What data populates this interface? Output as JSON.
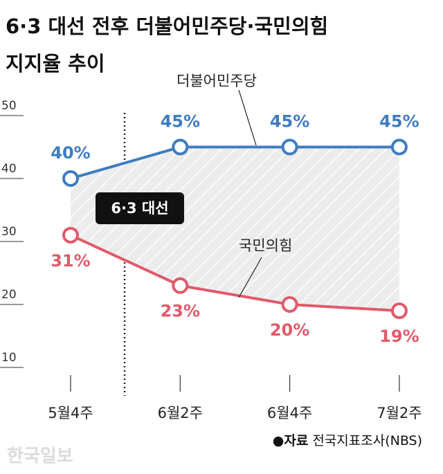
{
  "chart_data": {
    "type": "line",
    "title": "6·3 대선 전후 더불어민주당·국민의힘",
    "subtitle": "지지율 추이",
    "categories": [
      "5월4주",
      "6월2주",
      "6월4주",
      "7월2주"
    ],
    "series": [
      {
        "name": "더불어민주당",
        "color": "#3f7cc0",
        "values": [
          40,
          45,
          45,
          45
        ],
        "value_labels": [
          "40%",
          "45%",
          "45%",
          "45%"
        ]
      },
      {
        "name": "국민의힘",
        "color": "#e05a6b",
        "values": [
          31,
          23,
          20,
          19
        ],
        "value_labels": [
          "31%",
          "23%",
          "20%",
          "19%"
        ]
      }
    ],
    "ylim": [
      10,
      50
    ],
    "yticks": [
      10,
      20,
      30,
      40,
      50
    ],
    "annotation": "6·3 대선",
    "source_label": "●자료",
    "source": "전국지표조사(NBS)",
    "logo": "한국일보"
  }
}
